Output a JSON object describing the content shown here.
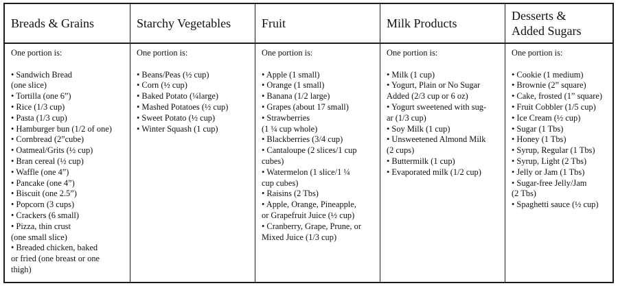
{
  "columns": [
    {
      "title": "Breads & Grains",
      "intro": "One portion is:",
      "items": [
        "• Sandwich Bread\n(one slice)",
        "• Tortilla (one 6”)",
        "• Rice (1/3 cup)",
        "• Pasta (1/3 cup)",
        "• Hamburger bun (1/2 of one)",
        "• Cornbread  (2”cube)",
        "• Oatmeal/Grits  (½ cup)",
        "• Bran cereal  (½ cup)",
        "• Waffle (one 4”)",
        "• Pancake (one 4”)",
        "• Biscuit (one 2.5”)",
        "• Popcorn (3 cups)",
        "• Crackers (6 small)",
        "• Pizza, thin crust\n (one small slice)",
        "• Breaded chicken, baked\nor fried (one breast or one\nthigh)"
      ]
    },
    {
      "title": "Starchy Vegetables",
      "intro": "One portion is:",
      "items": [
        "• Beans/Peas  (½ cup)",
        "• Corn  (½ cup)",
        "• Baked Potato (¼large)",
        "• Mashed Potatoes (½ cup)",
        "• Sweet Potato  (½ cup)",
        "• Winter Squash (1 cup)"
      ]
    },
    {
      "title": "Fruit",
      "intro": "One portion is:",
      "items": [
        "• Apple (1 small)",
        "• Orange (1 small)",
        "• Banana (1/2 large)",
        "• Grapes (about 17 small)",
        "• Strawberries\n(1 ¼ cup whole)",
        "• Blackberries (3/4 cup)",
        "• Cantaloupe (2 slices/1 cup\ncubes)",
        "• Watermelon  (1 slice/1 ¼\ncup cubes)",
        "• Raisins (2 Tbs)",
        "• Apple, Orange, Pineapple,\nor Grapefruit Juice  (½ cup)",
        "• Cranberry, Grape, Prune, or\nMixed Juice (1/3 cup)"
      ]
    },
    {
      "title": "Milk Products",
      "intro": "One portion is:",
      "items": [
        "• Milk (1 cup)",
        "• Yogurt, Plain or No Sugar\nAdded (2/3 cup or 6 oz)",
        "• Yogurt sweetened with sug-\nar (1/3 cup)",
        "• Soy Milk  (1  cup)",
        "• Unsweetened Almond Milk\n(2 cups)",
        "• Buttermilk (1 cup)",
        "• Evaporated milk (1/2 cup)"
      ]
    },
    {
      "title": "Desserts &\nAdded Sugars",
      "intro": "One portion is:",
      "items": [
        "• Cookie (1 medium)",
        "• Brownie (2” square)",
        "• Cake, frosted (1” square)",
        "• Fruit Cobbler (1/5 cup)",
        "• Ice Cream (½ cup)",
        "• Sugar (1 Tbs)",
        "• Honey (1 Tbs)",
        "• Syrup, Regular (1 Tbs)",
        "• Syrup, Light (2 Tbs)",
        "• Jelly or Jam (1 Tbs)",
        "• Sugar-free Jelly/Jam\n(2 Tbs)",
        "• Spaghetti sauce (½ cup)"
      ]
    }
  ]
}
